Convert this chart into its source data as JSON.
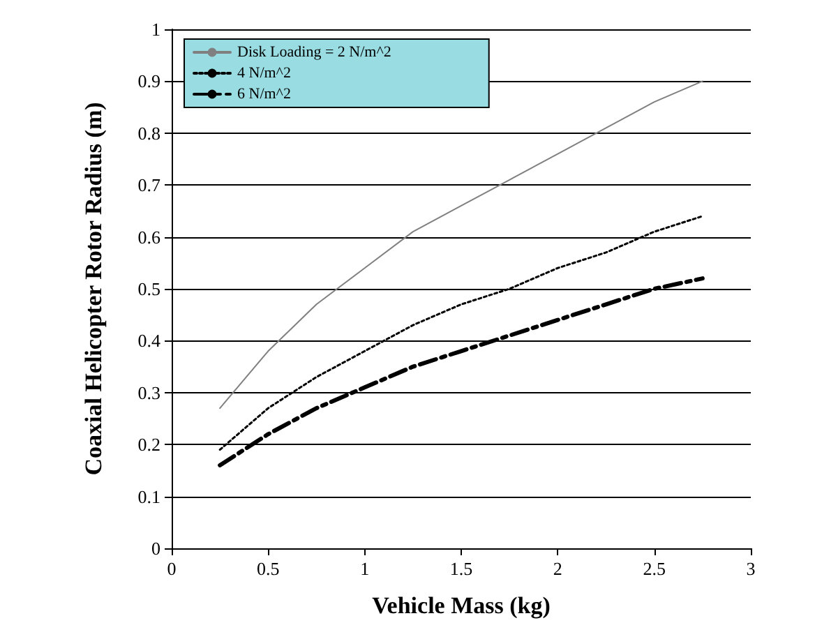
{
  "chart_data": {
    "type": "line",
    "xlabel": "Vehicle Mass (kg)",
    "ylabel": "Coaxial Helicopter Rotor Radius (m)",
    "x": [
      0.25,
      0.5,
      0.75,
      1,
      1.25,
      1.5,
      1.75,
      2,
      2.25,
      2.5,
      2.75
    ],
    "series": [
      {
        "name": "Disk Loading = 2 N/m^2",
        "color": "#808080",
        "line_style": "solid",
        "values": [
          0.27,
          0.38,
          0.47,
          0.54,
          0.61,
          0.66,
          0.71,
          0.76,
          0.81,
          0.86,
          0.9
        ]
      },
      {
        "name": "4 N/m^2",
        "color": "#000000",
        "line_style": "dotted",
        "values": [
          0.19,
          0.27,
          0.33,
          0.38,
          0.43,
          0.47,
          0.5,
          0.54,
          0.57,
          0.61,
          0.64
        ]
      },
      {
        "name": "6 N/m^2",
        "color": "#000000",
        "line_style": "dashed",
        "values": [
          0.16,
          0.22,
          0.27,
          0.31,
          0.35,
          0.38,
          0.41,
          0.44,
          0.47,
          0.5,
          0.52
        ]
      }
    ],
    "xlim": [
      0,
      3
    ],
    "xticks": [
      0,
      0.5,
      1,
      1.5,
      2,
      2.5,
      3
    ],
    "ylim": [
      0,
      1
    ],
    "yticks": [
      0,
      0.1,
      0.2,
      0.3,
      0.4,
      0.5,
      0.6,
      0.7,
      0.8,
      0.9,
      1
    ],
    "grid": "y",
    "legend": "top left",
    "marker": "none"
  }
}
